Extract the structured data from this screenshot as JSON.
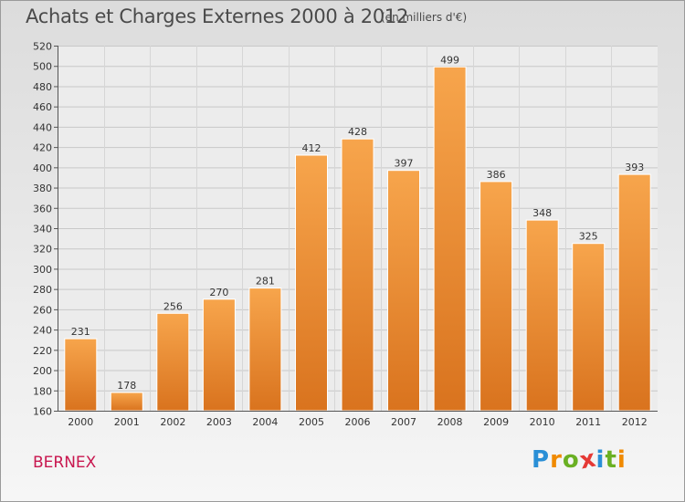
{
  "title": "Achats et Charges Externes 2000 à 2012",
  "unit_note": "(en milliers d'€)",
  "commune": "BERNEX",
  "brand": {
    "letters": [
      "P",
      "r",
      "o",
      "x",
      "i",
      "t",
      "i"
    ],
    "colors": [
      "#2a8fd6",
      "#f08a00",
      "#6ab023",
      "#e53935",
      "#2a8fd6",
      "#6ab023",
      "#f08a00"
    ]
  },
  "colors": {
    "bar_top": "#f7a54c",
    "bar_bottom": "#d9731e",
    "commune": "#c8174f",
    "grid": "#c8c8c8"
  },
  "chart_data": {
    "type": "bar",
    "title": "Achats et Charges Externes 2000 à 2012",
    "categories": [
      "2000",
      "2001",
      "2002",
      "2003",
      "2004",
      "2005",
      "2006",
      "2007",
      "2008",
      "2009",
      "2010",
      "2011",
      "2012"
    ],
    "values": [
      231,
      178,
      256,
      270,
      281,
      412,
      428,
      397,
      499,
      386,
      348,
      325,
      393
    ],
    "ylim": [
      160,
      520
    ],
    "yticks": [
      160,
      180,
      200,
      220,
      240,
      260,
      280,
      300,
      320,
      340,
      360,
      380,
      400,
      420,
      440,
      460,
      480,
      500,
      520
    ],
    "grid": true,
    "data_labels": true
  }
}
